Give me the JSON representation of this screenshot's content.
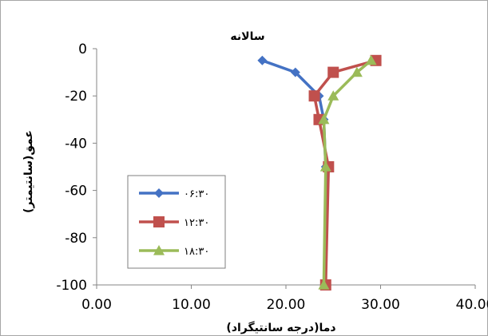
{
  "chart_data": {
    "type": "line",
    "title": "سالانه",
    "xlabel": "دما(درجه سانتیگراد)",
    "ylabel": "عمق(سانتیمتر)",
    "xlim": [
      0,
      40
    ],
    "ylim": [
      -100,
      0
    ],
    "x_ticks": [
      "0.00",
      "10.00",
      "20.00",
      "30.00",
      "40.00"
    ],
    "y_ticks": [
      "0",
      "-20",
      "-40",
      "-60",
      "-80",
      "-100"
    ],
    "grid": false,
    "legend_position": "bottom-left",
    "series": [
      {
        "name": "۰۶:۳۰",
        "color": "#4472c4",
        "marker": "diamond",
        "points": [
          [
            17.5,
            -5
          ],
          [
            21,
            -10
          ],
          [
            23.5,
            -20
          ],
          [
            24,
            -30
          ],
          [
            24.2,
            -50
          ],
          [
            24.2,
            -100
          ]
        ]
      },
      {
        "name": "۱۲:۳۰",
        "color": "#c0504d",
        "marker": "square",
        "points": [
          [
            29.5,
            -5
          ],
          [
            25,
            -10
          ],
          [
            23,
            -20
          ],
          [
            23.5,
            -30
          ],
          [
            24.5,
            -50
          ],
          [
            24.2,
            -100
          ]
        ]
      },
      {
        "name": "۱۸:۳۰",
        "color": "#9bbb59",
        "marker": "triangle",
        "points": [
          [
            29,
            -5
          ],
          [
            27.5,
            -10
          ],
          [
            25,
            -20
          ],
          [
            24,
            -30
          ],
          [
            24.2,
            -50
          ],
          [
            24,
            -100
          ]
        ]
      }
    ]
  }
}
